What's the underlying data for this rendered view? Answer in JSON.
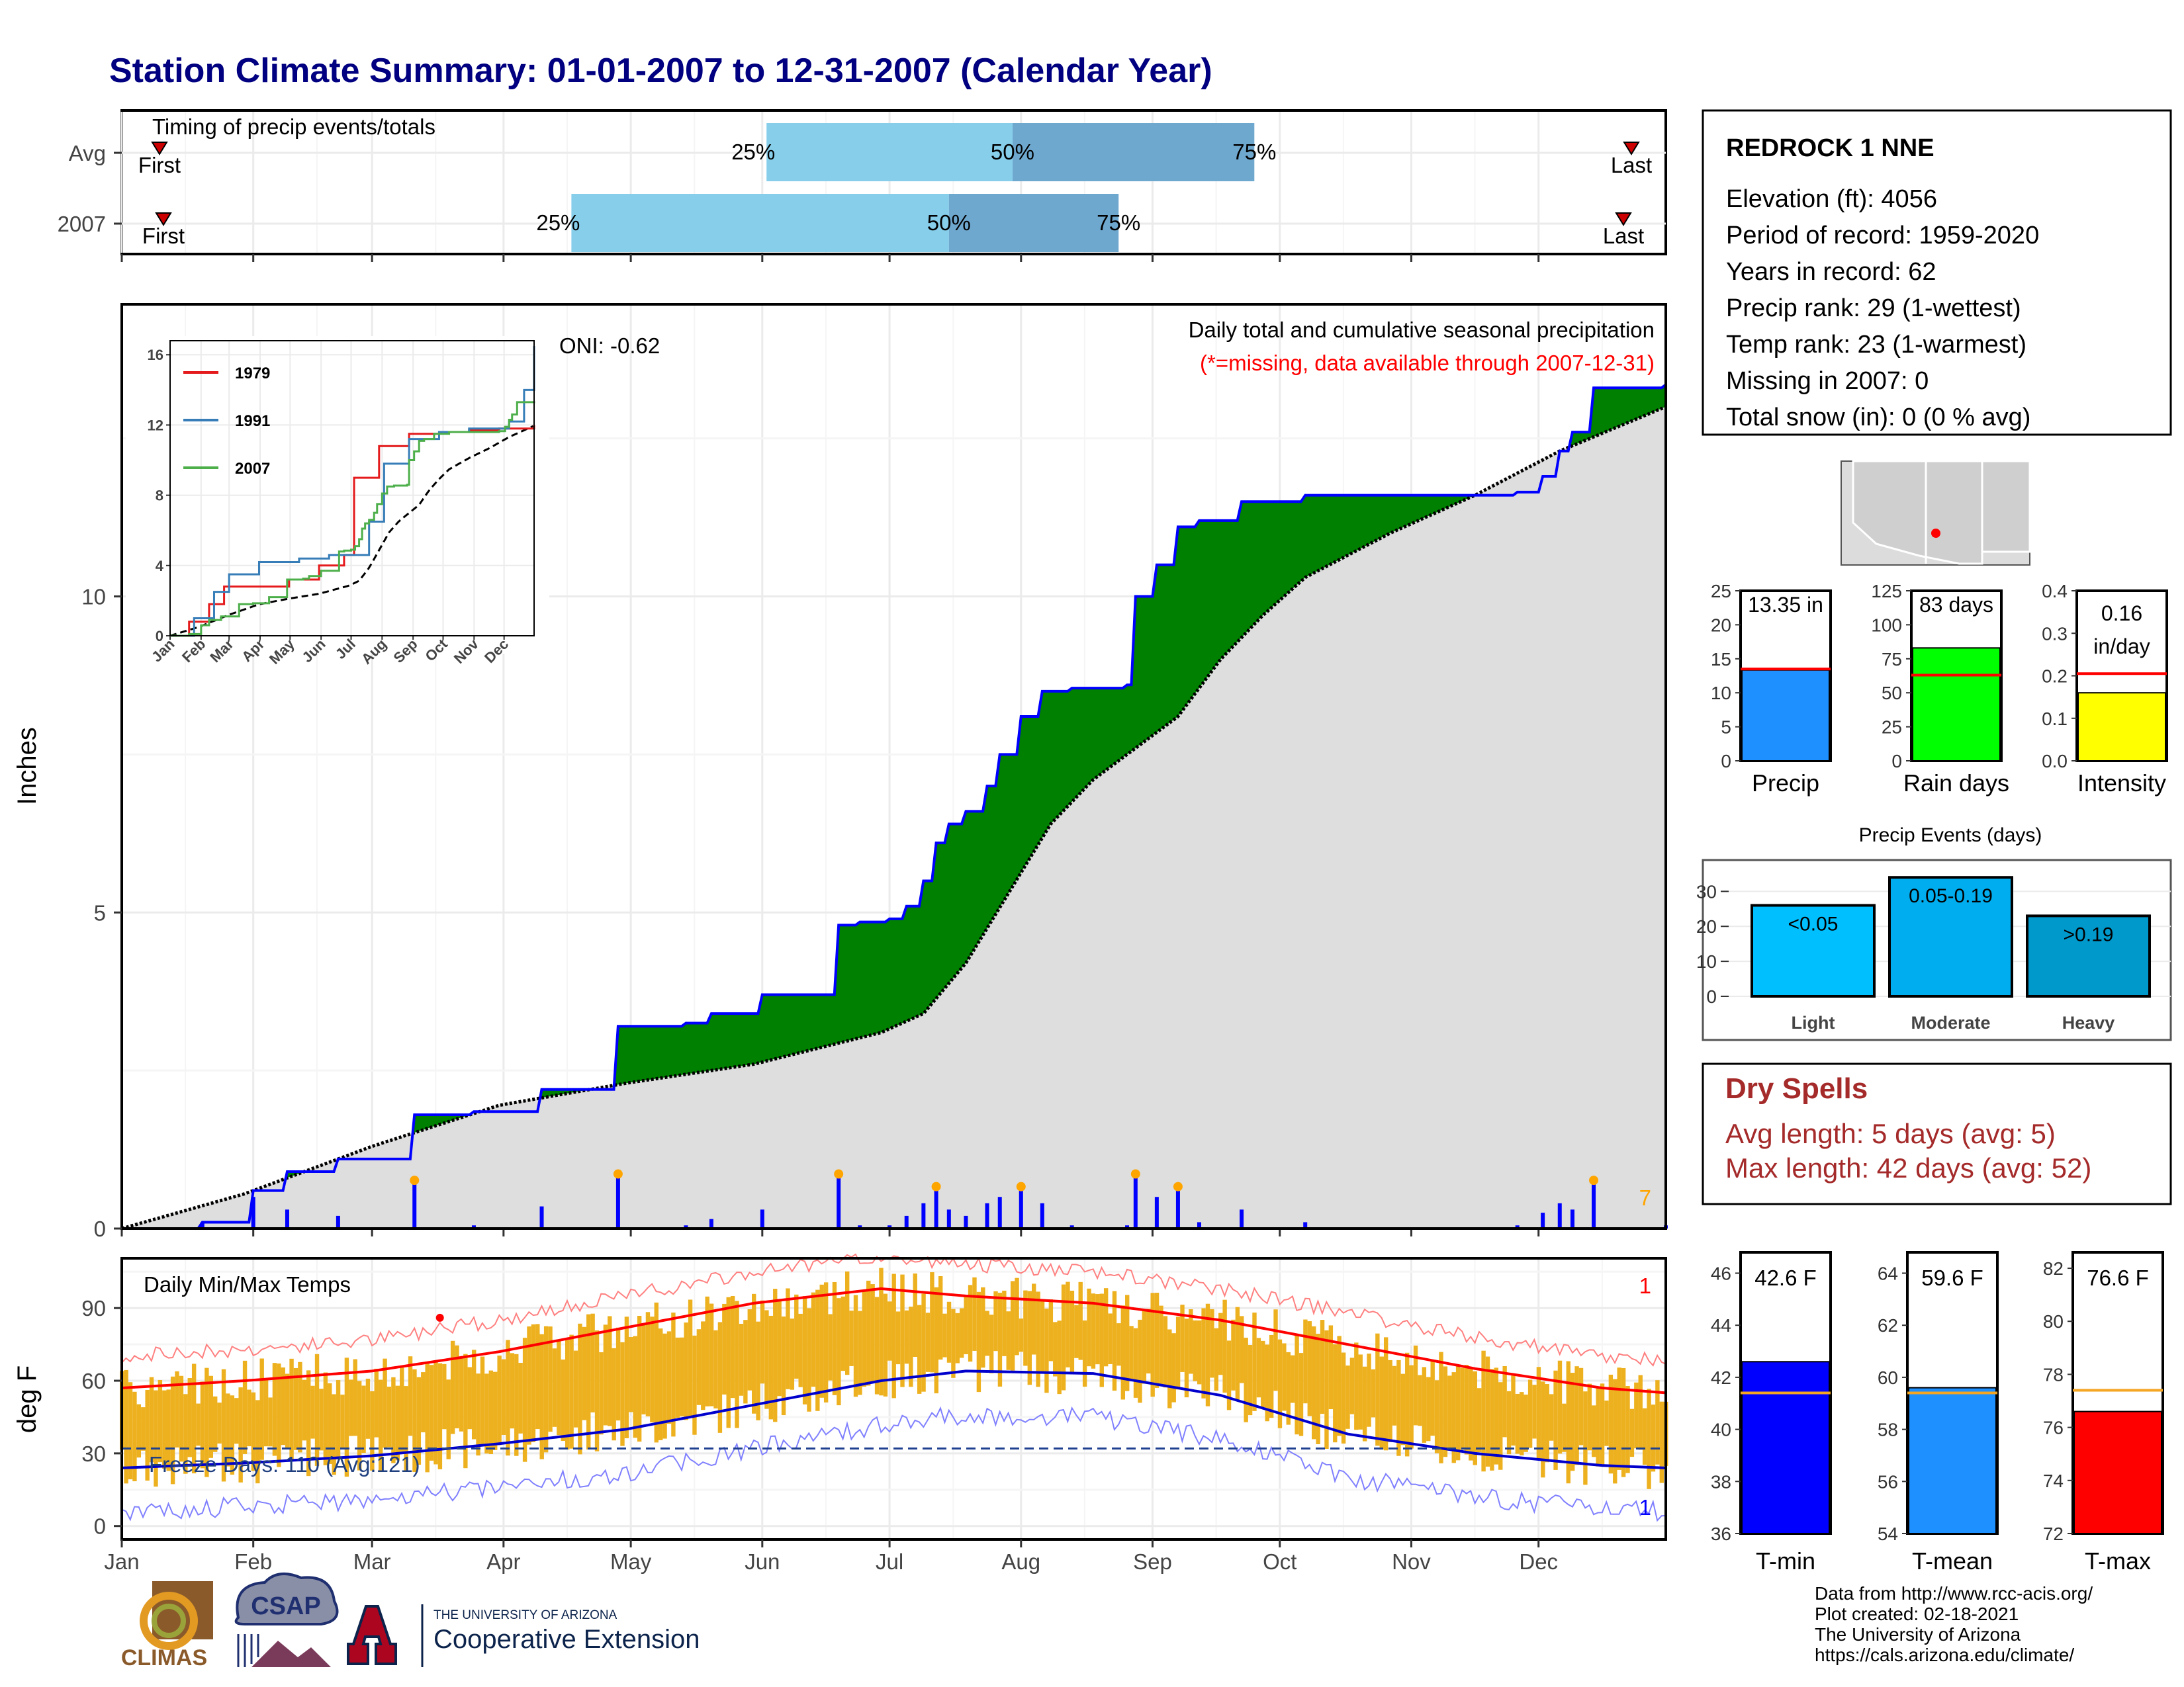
{
  "title": "Station Climate Summary: 01-01-2007 to 12-31-2007 (Calendar Year)",
  "station": {
    "name": "REDROCK 1 NNE",
    "lines": [
      "Elevation (ft): 4056",
      "Period of record: 1959-2020",
      "Years in record: 62",
      "Precip rank: 29 (1-wettest)",
      "Temp rank: 23 (1-warmest)",
      "Missing in 2007: 0",
      "Total snow (in): 0 (0 % avg)"
    ]
  },
  "months": [
    "Jan",
    "Feb",
    "Mar",
    "Apr",
    "May",
    "Jun",
    "Jul",
    "Aug",
    "Sep",
    "Oct",
    "Nov",
    "Dec"
  ],
  "timing": {
    "title": "Timing of precip events/totals",
    "rows": [
      {
        "label": "Avg",
        "first": "First",
        "last": "Last",
        "p25": "25%",
        "p50": "50%",
        "p75": "75%",
        "doy25": 153,
        "doy50": 211,
        "doy75": 268
      },
      {
        "label": "2007",
        "first": "First",
        "last": "Last",
        "p25": "25%",
        "p50": "50%",
        "p75": "75%",
        "doy25": 107,
        "doy50": 196,
        "doy75": 236
      }
    ]
  },
  "precip_panel": {
    "ylabel": "Inches",
    "caption": "Daily total and cumulative seasonal precipitation",
    "missing_note": "(*=missing, data available through 2007-12-31)",
    "oni": "ONI: -0.62",
    "count_label": "7",
    "colors": {
      "above": "#008000",
      "below": "#8B5A13",
      "avg_fill": "#dedede",
      "line": "#0000ff",
      "daily": "#0000ff",
      "marker": "#FFA500"
    }
  },
  "inset": {
    "legend": [
      {
        "name": "1979",
        "color": "#e41a1c"
      },
      {
        "name": "1991",
        "color": "#377eb8"
      },
      {
        "name": "2007",
        "color": "#4daf4a"
      }
    ]
  },
  "temp_panel": {
    "ylabel": "deg F",
    "title": "Daily Min/Max Temps",
    "freeze": "Freeze Days: 110 (Avg:121)",
    "count_top": "1",
    "count_bottom": "1"
  },
  "gauges": [
    {
      "label": "Precip",
      "value_text": "13.35 in",
      "value": 13.35,
      "avg": 13.5,
      "max": 25,
      "ticks": [
        0,
        5,
        10,
        15,
        20,
        25
      ],
      "color": "#1E90FF"
    },
    {
      "label": "Rain days",
      "value_text": "83 days",
      "value": 83,
      "avg": 63,
      "max": 125,
      "ticks": [
        0,
        25,
        50,
        75,
        100,
        125
      ],
      "color": "#00FF00"
    },
    {
      "label": "Intensity",
      "value_text": "0.16 in/day",
      "value": 0.16,
      "avg": 0.205,
      "max": 0.4,
      "ticks": [
        "0.0",
        "0.1",
        "0.2",
        "0.3",
        "0.4"
      ],
      "color": "#FFFF00"
    }
  ],
  "events": {
    "title": "Precip Events (days)",
    "bars": [
      {
        "cat": "Light",
        "label": "<0.05",
        "value": 26,
        "color": "#00BFFF"
      },
      {
        "cat": "Moderate",
        "label": "0.05-0.19",
        "value": 34,
        "color": "#00AEEF"
      },
      {
        "cat": "Heavy",
        "label": ">0.19",
        "value": 23,
        "color": "#0099CC"
      }
    ],
    "ticks": [
      0,
      10,
      20,
      30
    ]
  },
  "dry_spells": {
    "title": "Dry Spells",
    "lines": [
      "Avg length: 5 days (avg: 5)",
      "Max length: 42 days (avg: 52)"
    ]
  },
  "temp_gauges": [
    {
      "label": "T-min",
      "value_text": "42.6 F",
      "value": 42.6,
      "avg": 41.4,
      "min": 36,
      "max": 46.8,
      "ticks": [
        36,
        38,
        40,
        42,
        44,
        46
      ],
      "color": "#0000FF"
    },
    {
      "label": "T-mean",
      "value_text": "59.6 F",
      "value": 59.6,
      "avg": 59.4,
      "min": 54,
      "max": 64.8,
      "ticks": [
        54,
        56,
        58,
        60,
        62,
        64
      ],
      "color": "#1E90FF"
    },
    {
      "label": "T-max",
      "value_text": "76.6 F",
      "value": 76.6,
      "avg": 77.4,
      "min": 72,
      "max": 82.6,
      "ticks": [
        72,
        74,
        76,
        78,
        80,
        82
      ],
      "color": "#FF0000"
    }
  ],
  "footer": {
    "lines": [
      "Data from http://www.rcc-acis.org/",
      "Plot created: 02-18-2021",
      "The University of Arizona",
      "https://cals.arizona.edu/climate/"
    ],
    "logos": [
      "CLIMAS",
      "CSAP",
      "THE UNIVERSITY OF ARIZONA",
      "Cooperative Extension"
    ]
  },
  "chart_data": [
    {
      "type": "area",
      "title": "Daily total and cumulative seasonal precipitation",
      "ylabel": "Inches",
      "ylim": [
        0,
        14.6
      ],
      "series": [
        {
          "name": "2007",
          "x_doy": [
            1,
            20,
            32,
            40,
            52,
            70,
            80,
            84,
            100,
            118,
            134,
            140,
            152,
            170,
            175,
            182,
            186,
            190,
            193,
            196,
            200,
            205,
            208,
            213,
            218,
            225,
            238,
            240,
            245,
            250,
            255,
            265,
            280,
            300,
            320,
            330,
            336,
            340,
            343,
            348,
            365
          ],
          "values": [
            0,
            0.1,
            0.6,
            0.9,
            1.1,
            1.8,
            1.8,
            1.85,
            2.2,
            3.2,
            3.25,
            3.4,
            3.7,
            4.8,
            4.85,
            4.9,
            5.1,
            5.5,
            6.1,
            6.4,
            6.6,
            7.0,
            7.5,
            8.1,
            8.5,
            8.55,
            8.6,
            10.0,
            10.5,
            11.1,
            11.2,
            11.5,
            11.6,
            11.6,
            11.6,
            11.65,
            11.9,
            12.3,
            12.6,
            13.3,
            13.35
          ]
        },
        {
          "name": "Average",
          "x_doy": [
            1,
            30,
            60,
            90,
            120,
            150,
            180,
            190,
            200,
            210,
            220,
            230,
            240,
            250,
            260,
            270,
            280,
            300,
            320,
            340,
            365
          ],
          "values": [
            0,
            0.55,
            1.3,
            1.95,
            2.3,
            2.6,
            3.1,
            3.4,
            4.2,
            5.3,
            6.4,
            7.1,
            7.6,
            8.1,
            9.0,
            9.7,
            10.3,
            11.0,
            11.6,
            12.3,
            13.0
          ]
        }
      ]
    },
    {
      "type": "line",
      "title": "Daily Min/Max Temps",
      "ylabel": "deg F",
      "ylim": [
        -5,
        110
      ],
      "series": [
        {
          "name": "Avg Tmax",
          "x_doy": [
            1,
            30,
            60,
            90,
            120,
            150,
            180,
            200,
            230,
            260,
            290,
            320,
            350,
            365
          ],
          "values": [
            57,
            60,
            64,
            72,
            82,
            92,
            98,
            95,
            92,
            85,
            75,
            65,
            57,
            55
          ]
        },
        {
          "name": "Avg Tmin",
          "x_doy": [
            1,
            30,
            60,
            90,
            120,
            150,
            180,
            200,
            230,
            260,
            290,
            320,
            350,
            365
          ],
          "values": [
            24,
            26,
            29,
            34,
            40,
            50,
            60,
            64,
            63,
            54,
            38,
            30,
            25,
            24
          ]
        }
      ]
    }
  ]
}
